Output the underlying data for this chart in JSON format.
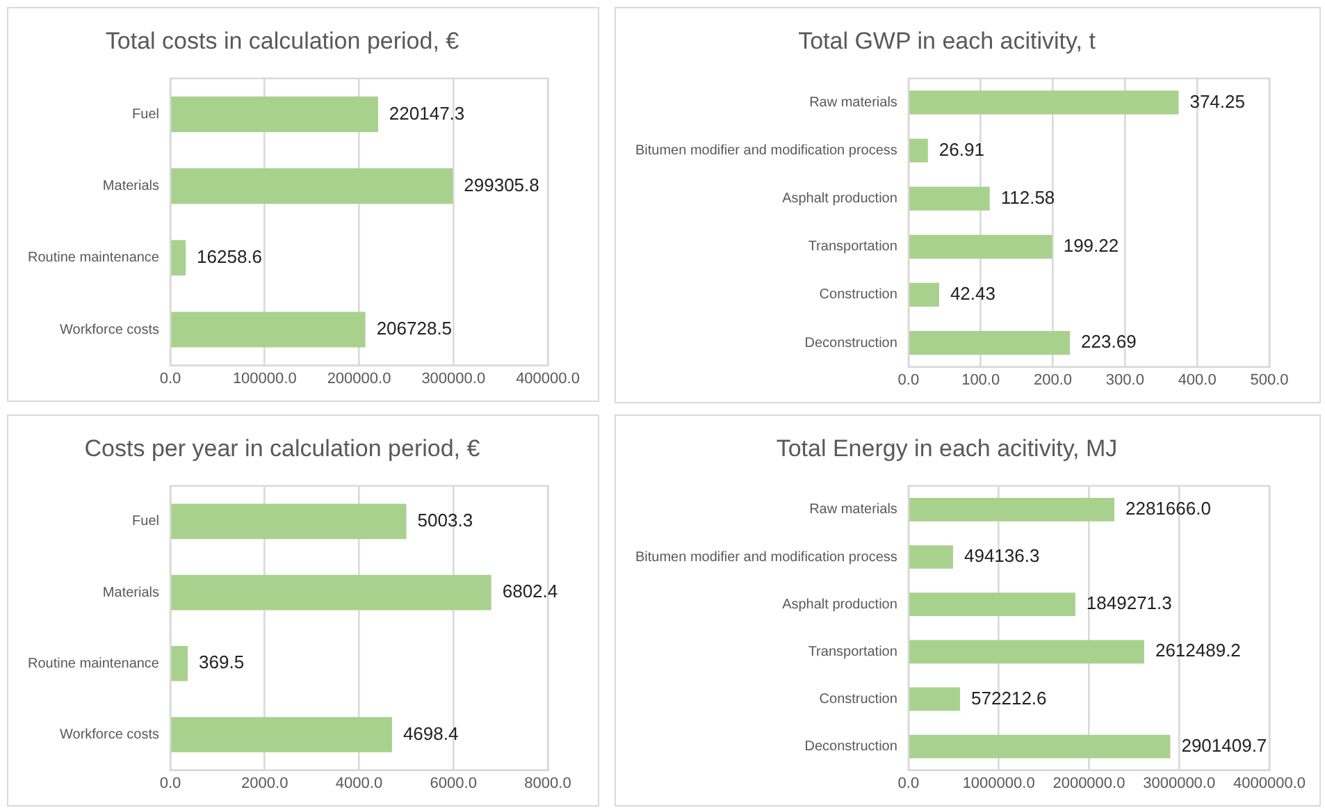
{
  "chart_data": [
    {
      "type": "bar",
      "orientation": "horizontal",
      "title": "Total costs in calculation period, €",
      "categories": [
        "Fuel",
        "Materials",
        "Routine maintenance",
        "Workforce costs"
      ],
      "values": [
        220147.3,
        299305.8,
        16258.6,
        206728.5
      ],
      "value_labels": [
        "220147.3",
        "299305.8",
        "16258.6",
        "206728.5"
      ],
      "color": "#a9d18e",
      "xlim": [
        0,
        400000
      ],
      "xticks": [
        {
          "value": 0,
          "label": "0.0"
        },
        {
          "value": 100000,
          "label": "100000.0"
        },
        {
          "value": 200000,
          "label": "200000.0"
        },
        {
          "value": 300000,
          "label": "300000.0"
        },
        {
          "value": 400000,
          "label": "400000.0"
        }
      ],
      "grid": "x",
      "legend": false
    },
    {
      "type": "bar",
      "orientation": "horizontal",
      "title": "Total GWP in each acitivity, t",
      "categories": [
        "Raw materials",
        "Bitumen modifier and modification process",
        "Asphalt production",
        "Transportation",
        "Construction",
        "Deconstruction"
      ],
      "values": [
        374.25,
        26.91,
        112.58,
        199.22,
        42.43,
        223.69
      ],
      "value_labels": [
        "374.25",
        "26.91",
        "112.58",
        "199.22",
        "42.43",
        "223.69"
      ],
      "color": "#a9d18e",
      "xlim": [
        0,
        500
      ],
      "xticks": [
        {
          "value": 0,
          "label": "0.0"
        },
        {
          "value": 100,
          "label": "100.0"
        },
        {
          "value": 200,
          "label": "200.0"
        },
        {
          "value": 300,
          "label": "300.0"
        },
        {
          "value": 400,
          "label": "400.0"
        },
        {
          "value": 500,
          "label": "500.0"
        }
      ],
      "grid": "x",
      "legend": false
    },
    {
      "type": "bar",
      "orientation": "horizontal",
      "title": "Costs per year in calculation period, €",
      "categories": [
        "Fuel",
        "Materials",
        "Routine maintenance",
        "Workforce costs"
      ],
      "values": [
        5003.3,
        6802.4,
        369.5,
        4698.4
      ],
      "value_labels": [
        "5003.3",
        "6802.4",
        "369.5",
        "4698.4"
      ],
      "color": "#a9d18e",
      "xlim": [
        0,
        8000
      ],
      "xticks": [
        {
          "value": 0,
          "label": "0.0"
        },
        {
          "value": 2000,
          "label": "2000.0"
        },
        {
          "value": 4000,
          "label": "4000.0"
        },
        {
          "value": 6000,
          "label": "6000.0"
        },
        {
          "value": 8000,
          "label": "8000.0"
        }
      ],
      "grid": "x",
      "legend": false
    },
    {
      "type": "bar",
      "orientation": "horizontal",
      "title": "Total Energy in each acitivity, MJ",
      "categories": [
        "Raw materials",
        "Bitumen modifier and modification process",
        "Asphalt production",
        "Transportation",
        "Construction",
        "Deconstruction"
      ],
      "values": [
        2281666.0,
        494136.3,
        1849271.3,
        2612489.2,
        572212.6,
        2901409.7
      ],
      "value_labels": [
        "2281666.0",
        "494136.3",
        "1849271.3",
        "2612489.2",
        "572212.6",
        "2901409.7"
      ],
      "color": "#a9d18e",
      "xlim": [
        0,
        4000000
      ],
      "xticks": [
        {
          "value": 0,
          "label": "0.0"
        },
        {
          "value": 1000000,
          "label": "1000000.0"
        },
        {
          "value": 2000000,
          "label": "2000000.0"
        },
        {
          "value": 3000000,
          "label": "3000000.0"
        },
        {
          "value": 4000000,
          "label": "4000000.0"
        }
      ],
      "grid": "x",
      "legend": false
    }
  ]
}
